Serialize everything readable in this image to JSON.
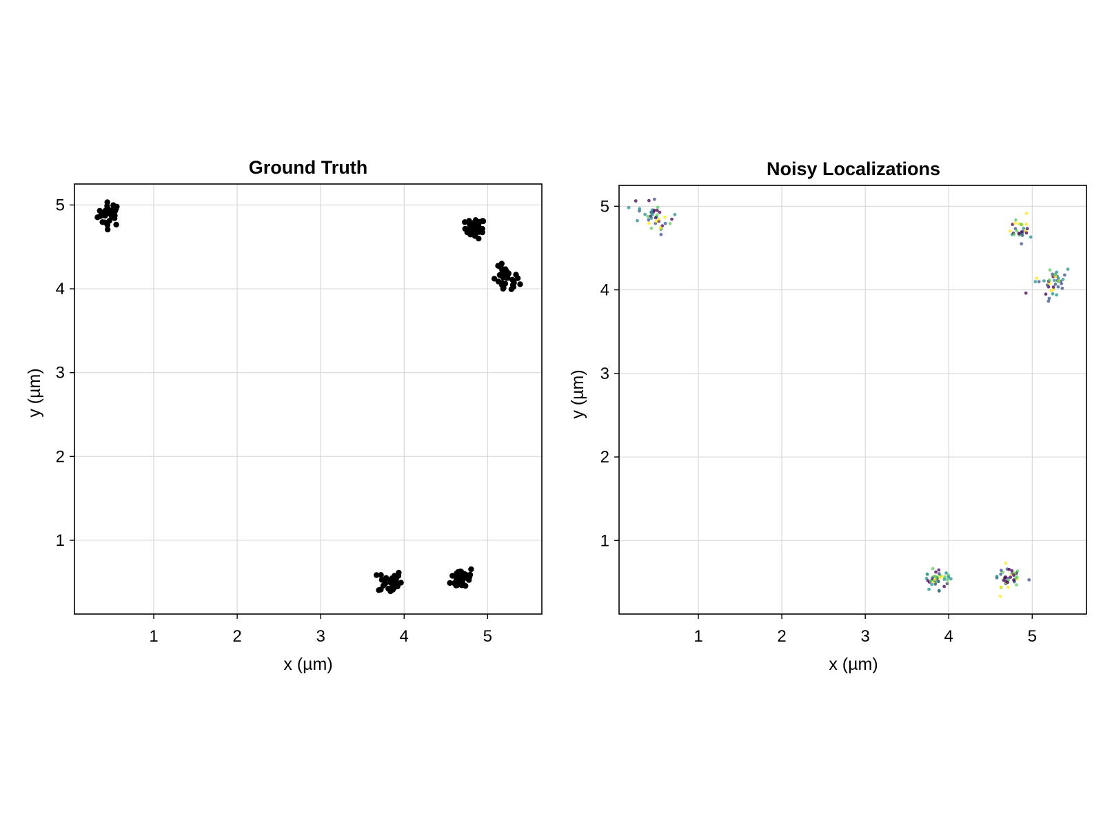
{
  "chart_data": [
    {
      "type": "scatter",
      "title": "Ground Truth",
      "xlabel": "x (µm)",
      "ylabel": "y (µm)",
      "xlim": [
        0.05,
        5.65
      ],
      "ylim": [
        0.12,
        5.25
      ],
      "xticks": [
        1,
        2,
        3,
        4,
        5
      ],
      "yticks": [
        1,
        2,
        3,
        4,
        5
      ],
      "grid": true,
      "point_color": "#000000",
      "clusters": [
        {
          "center": [
            0.47,
            4.89
          ],
          "spread": 0.07,
          "count": 32
        },
        {
          "center": [
            4.85,
            4.72
          ],
          "spread": 0.06,
          "count": 36
        },
        {
          "center": [
            5.22,
            4.1
          ],
          "spread": 0.08,
          "count": 34
        },
        {
          "center": [
            3.83,
            0.51
          ],
          "spread": 0.07,
          "count": 34
        },
        {
          "center": [
            4.7,
            0.55
          ],
          "spread": 0.07,
          "count": 34
        }
      ]
    },
    {
      "type": "scatter",
      "title": "Noisy Localizations",
      "xlabel": "x (µm)",
      "ylabel": "y (µm)",
      "xlim": [
        0.05,
        5.65
      ],
      "ylim": [
        0.12,
        5.25
      ],
      "xticks": [
        1,
        2,
        3,
        4,
        5
      ],
      "yticks": [
        1,
        2,
        3,
        4,
        5
      ],
      "grid": true,
      "colormap": [
        "#440154",
        "#3b528b",
        "#21918c",
        "#5ec962",
        "#fde725"
      ],
      "clusters": [
        {
          "center": [
            0.48,
            4.88
          ],
          "spread": 0.09,
          "count": 40
        },
        {
          "center": [
            4.86,
            4.72
          ],
          "spread": 0.07,
          "count": 28
        },
        {
          "center": [
            5.23,
            4.1
          ],
          "spread": 0.09,
          "count": 40
        },
        {
          "center": [
            3.84,
            0.51
          ],
          "spread": 0.08,
          "count": 44
        },
        {
          "center": [
            4.7,
            0.56
          ],
          "spread": 0.08,
          "count": 40
        }
      ]
    }
  ]
}
